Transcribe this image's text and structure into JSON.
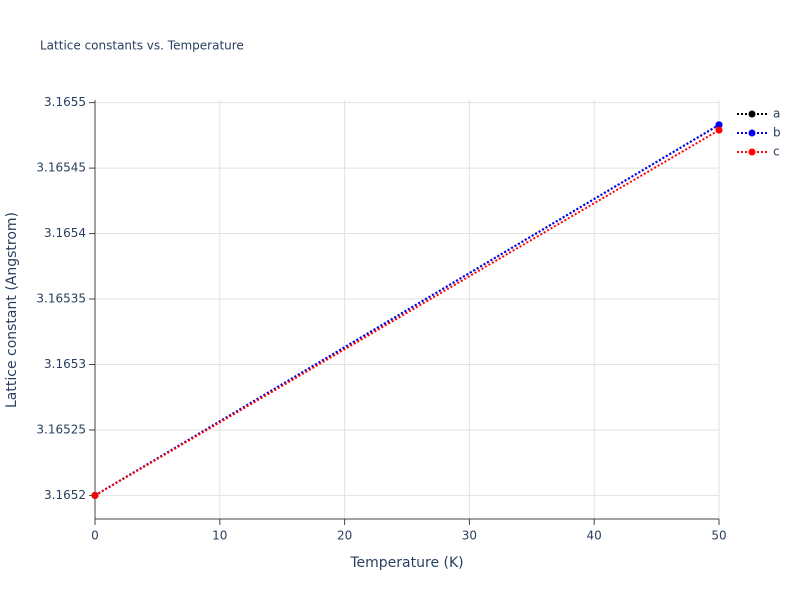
{
  "chart_data": {
    "type": "line",
    "title": "Lattice constants vs. Temperature",
    "x_label": "Temperature (K)",
    "y_label": "Lattice constant (Angstrom)",
    "x": [
      0,
      50
    ],
    "series": [
      {
        "name": "a",
        "color": "#000000",
        "values": [
          3.1652,
          3.165483
        ]
      },
      {
        "name": "b",
        "color": "#0000ff",
        "values": [
          3.1652,
          3.165483
        ]
      },
      {
        "name": "c",
        "color": "#ff0000",
        "values": [
          3.1652,
          3.165479
        ]
      }
    ],
    "xlim": [
      0,
      50
    ],
    "xticks": [
      0,
      10,
      20,
      30,
      40,
      50
    ],
    "ylim": [
      3.165182,
      3.165502
    ],
    "yticks": [
      3.1652,
      3.16525,
      3.1653,
      3.16535,
      3.1654,
      3.16545,
      3.1655
    ],
    "grid": true,
    "legend": "right"
  }
}
